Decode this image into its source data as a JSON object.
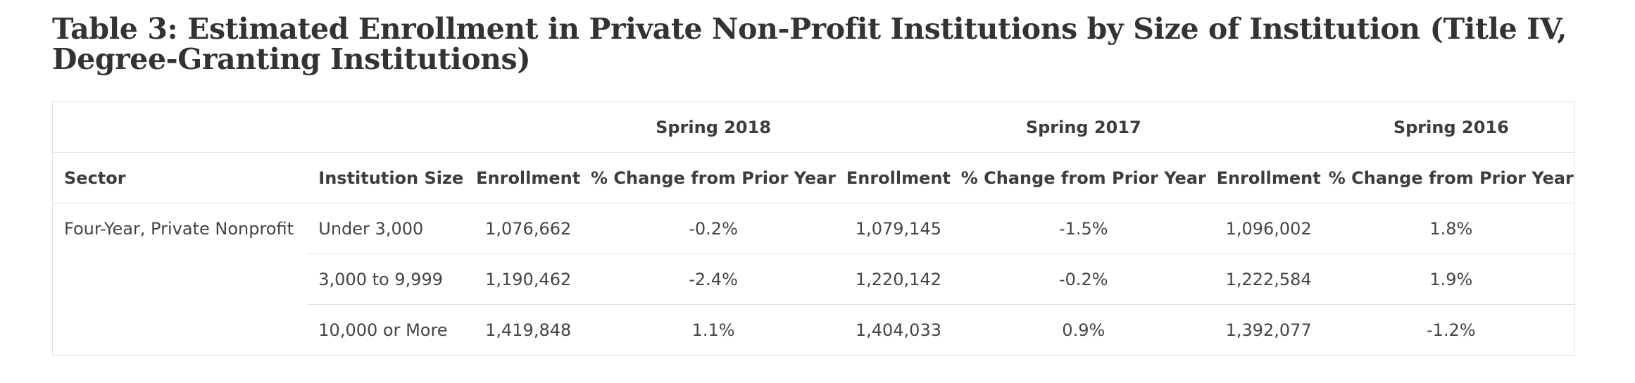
{
  "title": "Table 3: Estimated Enrollment in Private Non-Profit Institutions by Size of Institution (Title IV, Degree-Granting Institutions)",
  "table": {
    "year_headers": [
      "Spring 2018",
      "Spring 2017",
      "Spring 2016"
    ],
    "column_headers": [
      "Sector",
      "Institution Size",
      "Enrollment",
      "% Change from Prior Year",
      "Enrollment",
      "% Change from Prior Year",
      "Enrollment",
      "% Change from Prior Year"
    ],
    "sector": "Four-Year, Private Nonprofit",
    "rows": [
      {
        "size": "Under 3,000",
        "cells": [
          "1,076,662",
          "-0.2%",
          "1,079,145",
          "-1.5%",
          "1,096,002",
          "1.8%"
        ]
      },
      {
        "size": "3,000 to 9,999",
        "cells": [
          "1,190,462",
          "-2.4%",
          "1,220,142",
          "-0.2%",
          "1,222,584",
          "1.9%"
        ]
      },
      {
        "size": "10,000 or More",
        "cells": [
          "1,419,848",
          "1.1%",
          "1,404,033",
          "0.9%",
          "1,392,077",
          "-1.2%"
        ]
      }
    ]
  }
}
